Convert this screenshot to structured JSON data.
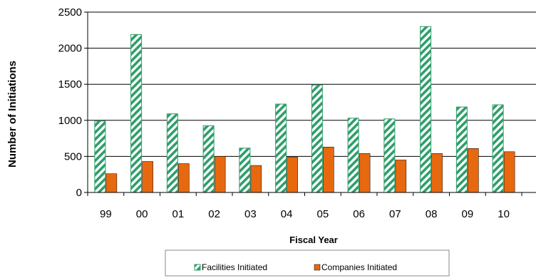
{
  "chart_data": {
    "type": "bar",
    "title": "",
    "xlabel": "Fiscal Year",
    "ylabel": "Number of Initiations",
    "categories": [
      "99",
      "00",
      "01",
      "02",
      "03",
      "04",
      "05",
      "06",
      "07",
      "08",
      "09",
      "10"
    ],
    "ylim": [
      0,
      2500
    ],
    "yticks": [
      "0",
      "500",
      "1000",
      "1500",
      "2000",
      "2500"
    ],
    "grid": true,
    "legend_position": "bottom",
    "series": [
      {
        "name": "Facilities Initiated",
        "values": [
          990,
          2190,
          1090,
          925,
          615,
          1225,
          1490,
          1030,
          1020,
          2300,
          1185,
          1215
        ],
        "color": "#2e9e6a",
        "pattern": "diagonal-hatch"
      },
      {
        "name": "Companies Initiated",
        "values": [
          260,
          430,
          400,
          500,
          375,
          490,
          630,
          540,
          450,
          540,
          610,
          565
        ],
        "color": "#e8680f",
        "pattern": "solid"
      }
    ]
  }
}
